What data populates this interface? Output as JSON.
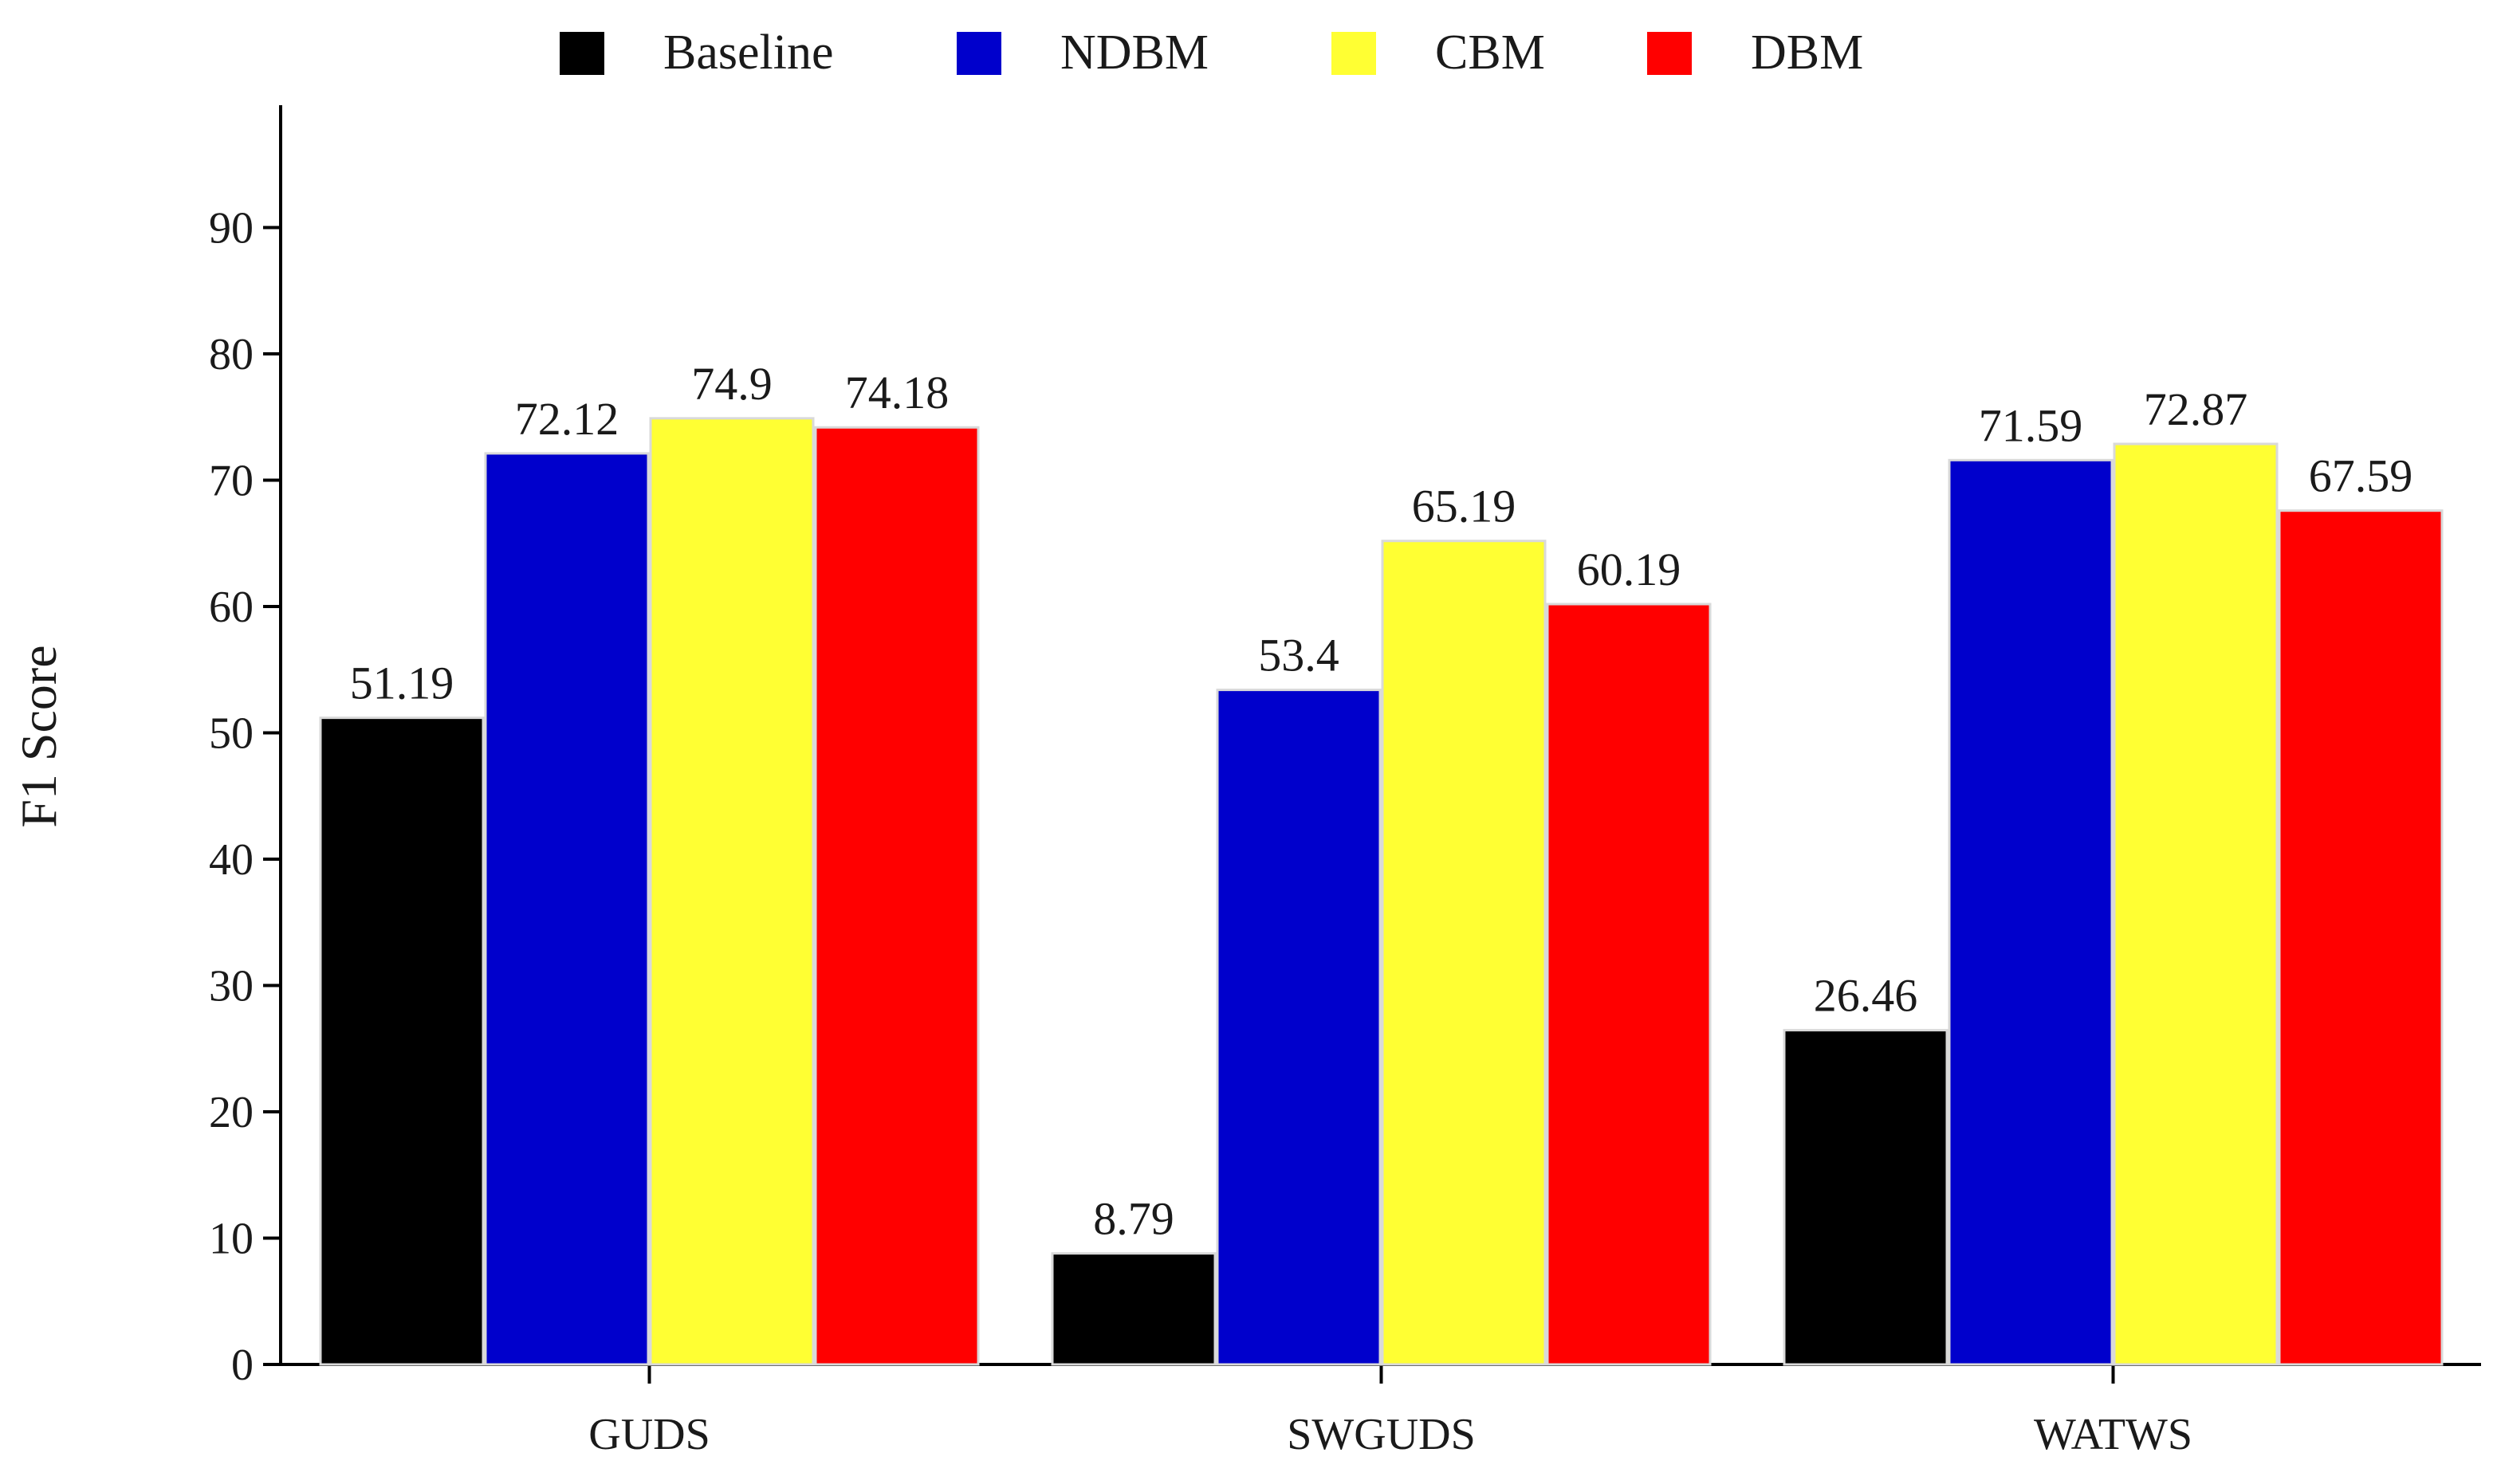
{
  "chart_data": {
    "type": "bar",
    "title": "",
    "xlabel": "",
    "ylabel": "F1 Score",
    "ylim": [
      0,
      100
    ],
    "yticks": [
      0,
      10,
      20,
      30,
      40,
      50,
      60,
      70,
      80,
      90
    ],
    "grid": false,
    "legend_position": "top-center",
    "categories": [
      "GUDS",
      "SWGUDS",
      "WATWS"
    ],
    "series": [
      {
        "name": "Baseline",
        "color": "#000000",
        "values": [
          51.19,
          8.79,
          26.46
        ],
        "labels": [
          "51.19",
          "8.79",
          "26.46"
        ]
      },
      {
        "name": "NDBM",
        "color": "#0000cc",
        "values": [
          72.12,
          53.4,
          71.59
        ],
        "labels": [
          "72.12",
          "53.4",
          "71.59"
        ]
      },
      {
        "name": "CBM",
        "color": "#ffff33",
        "values": [
          74.9,
          65.19,
          72.87
        ],
        "labels": [
          "74.9",
          "65.19",
          "72.87"
        ]
      },
      {
        "name": "DBM",
        "color": "#ff0000",
        "values": [
          74.18,
          60.19,
          67.59
        ],
        "labels": [
          "74.18",
          "60.19",
          "67.59"
        ]
      }
    ]
  }
}
